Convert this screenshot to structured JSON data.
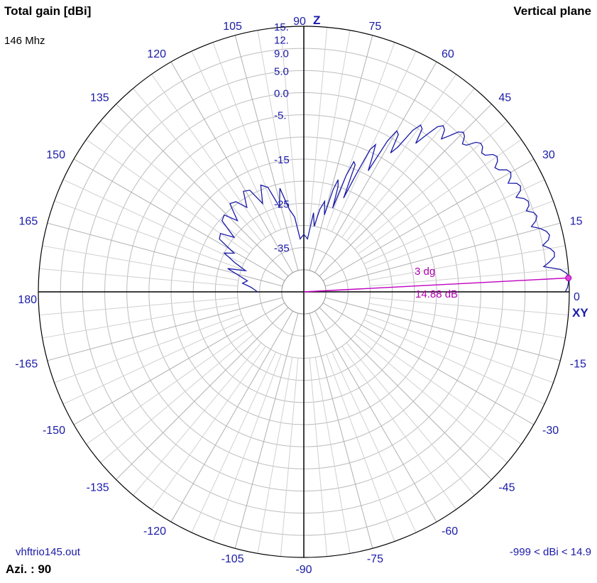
{
  "header": {
    "title": "Total gain [dBi]",
    "frequency": "146 Mhz",
    "plane": "Vertical plane"
  },
  "footer": {
    "file": "vhftrio145.out",
    "azimuth": "Azi. : 90",
    "range": "-999 < dBi < 14.9"
  },
  "chart_data": {
    "type": "polar",
    "title": "Total gain [dBi]",
    "axis_labels": {
      "z": "Z",
      "xy": "XY"
    },
    "angle_labels": [
      "90",
      "75",
      "60",
      "45",
      "30",
      "15",
      "0",
      "-15",
      "-30",
      "-45",
      "-60",
      "-75",
      "-90",
      "-105",
      "-120",
      "-135",
      "-150",
      "-165",
      "180",
      "165",
      "150",
      "135",
      "120",
      "105"
    ],
    "gain_ring_labels": [
      "15.",
      "12.",
      "9.0",
      "5.0",
      "0.0",
      "-5.",
      "-15",
      "-25",
      "-35"
    ],
    "gain_ring_db": [
      15,
      12,
      9,
      5,
      0,
      -5,
      -15,
      -25,
      -35
    ],
    "r_min_db": -45,
    "r_max_db": 15,
    "marker": {
      "angle_deg": 3,
      "gain_db": 14.88,
      "angle_label": "3 dg",
      "gain_label": "14.88 dB"
    },
    "series": [
      {
        "color": "#1a1aa8",
        "points": [
          [
            0,
            14.1
          ],
          [
            1,
            14.6
          ],
          [
            2,
            14.85
          ],
          [
            3,
            14.88
          ],
          [
            4,
            14.6
          ],
          [
            5,
            13.2
          ],
          [
            6,
            9.5
          ],
          [
            7,
            11.0
          ],
          [
            8,
            12.2
          ],
          [
            9,
            12.3
          ],
          [
            10,
            11.5
          ],
          [
            11,
            10.0
          ],
          [
            12,
            11.5
          ],
          [
            13,
            12.0
          ],
          [
            14,
            11.5
          ],
          [
            15,
            10.3
          ],
          [
            16,
            8.5
          ],
          [
            17,
            9.8
          ],
          [
            18,
            10.4
          ],
          [
            19,
            10.0
          ],
          [
            20,
            8.5
          ],
          [
            21,
            9.5
          ],
          [
            22,
            9.7
          ],
          [
            23,
            9.0
          ],
          [
            24,
            7.5
          ],
          [
            25,
            9.0
          ],
          [
            26,
            9.5
          ],
          [
            27,
            9.0
          ],
          [
            28,
            7.3
          ],
          [
            29,
            8.5
          ],
          [
            30,
            9.0
          ],
          [
            31,
            8.5
          ],
          [
            32,
            7.0
          ],
          [
            33,
            6.5
          ],
          [
            34,
            7.8
          ],
          [
            35,
            8.3
          ],
          [
            36,
            7.8
          ],
          [
            37,
            6.3
          ],
          [
            38,
            6.0
          ],
          [
            39,
            7.0
          ],
          [
            40,
            7.2
          ],
          [
            41,
            6.5
          ],
          [
            42,
            4.5
          ],
          [
            43,
            4.0
          ],
          [
            44,
            5.5
          ],
          [
            45,
            6.0
          ],
          [
            46,
            5.2
          ],
          [
            47,
            3.2
          ],
          [
            48,
            1.5
          ],
          [
            49,
            3.5
          ],
          [
            50,
            4.0
          ],
          [
            51,
            3.0
          ],
          [
            52,
            0.0
          ],
          [
            53,
            -3.0
          ],
          [
            54,
            0.5
          ],
          [
            55,
            1.0
          ],
          [
            56,
            -1.0
          ],
          [
            57,
            -6.0
          ],
          [
            58,
            -8.0
          ],
          [
            59,
            -3.5
          ],
          [
            60,
            -3.0
          ],
          [
            61,
            -6.0
          ],
          [
            62,
            -14.0
          ],
          [
            63,
            -11.0
          ],
          [
            64,
            -8.0
          ],
          [
            65,
            -9.5
          ],
          [
            66,
            -16.0
          ],
          [
            67,
            -22.0
          ],
          [
            68,
            -14.0
          ],
          [
            69,
            -13.5
          ],
          [
            70,
            -17.0
          ],
          [
            71,
            -25.0
          ],
          [
            72,
            -20.0
          ],
          [
            73,
            -18.5
          ],
          [
            74,
            -21.0
          ],
          [
            75,
            -27.0
          ],
          [
            77,
            -24.0
          ],
          [
            79,
            -26.0
          ],
          [
            81,
            -30.0
          ],
          [
            83,
            -27.0
          ],
          [
            86,
            -33.0
          ],
          [
            90,
            -32.0
          ],
          [
            94,
            -33.0
          ],
          [
            97,
            -28.0
          ],
          [
            100,
            -26.0
          ],
          [
            103,
            -21.0
          ],
          [
            106,
            -25.0
          ],
          [
            109,
            -20.0
          ],
          [
            112,
            -19.0
          ],
          [
            115,
            -23.0
          ],
          [
            118,
            -19.0
          ],
          [
            121,
            -18.5
          ],
          [
            124,
            -22.0
          ],
          [
            127,
            -19.5
          ],
          [
            130,
            -19.0
          ],
          [
            133,
            -23.0
          ],
          [
            136,
            -20.0
          ],
          [
            139,
            -20.5
          ],
          [
            142,
            -25.0
          ],
          [
            145,
            -22.0
          ],
          [
            148,
            -22.5
          ],
          [
            151,
            -27.0
          ],
          [
            154,
            -25.0
          ],
          [
            157,
            -28.0
          ],
          [
            160,
            -31.0
          ],
          [
            163,
            -27.0
          ],
          [
            166,
            -30.0
          ],
          [
            169,
            -32.0
          ],
          [
            172,
            -31.0
          ],
          [
            175,
            -33.0
          ],
          [
            178,
            -34.0
          ],
          [
            180,
            -34.5
          ]
        ]
      }
    ],
    "grid": true
  }
}
